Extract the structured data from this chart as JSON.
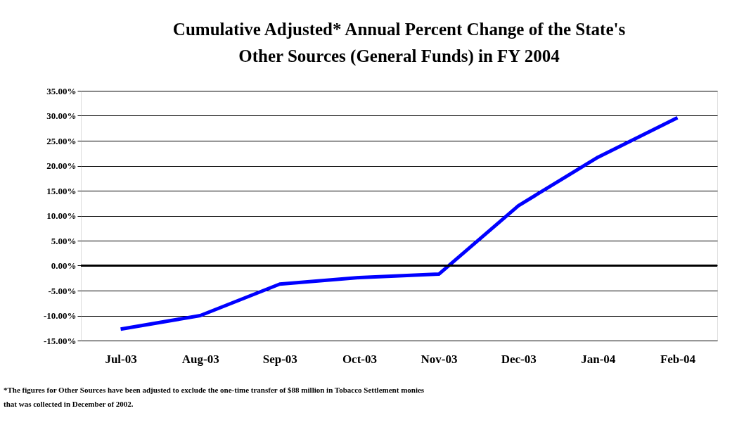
{
  "chart_data": {
    "type": "line",
    "title": "Cumulative Adjusted* Annual Percent Change of the State's Other Sources (General Funds) in FY 2004",
    "categories": [
      "Jul-03",
      "Aug-03",
      "Sep-03",
      "Oct-03",
      "Nov-03",
      "Dec-03",
      "Jan-04",
      "Feb-04"
    ],
    "series": [
      {
        "color": "#0000ff",
        "values": [
          -12.7,
          -10.0,
          -3.7,
          -2.4,
          -1.7,
          12.0,
          21.7,
          29.6
        ]
      }
    ],
    "ylim": [
      -15,
      35
    ],
    "yticks": [
      {
        "value": -15,
        "label": "-15.00%"
      },
      {
        "value": -10,
        "label": "-10.00%"
      },
      {
        "value": -5,
        "label": "-5.00%"
      },
      {
        "value": 0,
        "label": "0.00%"
      },
      {
        "value": 5,
        "label": "5.00%"
      },
      {
        "value": 10,
        "label": "10.00%"
      },
      {
        "value": 15,
        "label": "15.00%"
      },
      {
        "value": 20,
        "label": "20.00%"
      },
      {
        "value": 25,
        "label": "25.00%"
      },
      {
        "value": 30,
        "label": "30.00%"
      },
      {
        "value": 35,
        "label": "35.00%"
      }
    ],
    "ref_lines": [
      {
        "axis": "y",
        "value": 0,
        "color": "#000000"
      }
    ],
    "grid": "y",
    "marker": "none",
    "line_style": "solid",
    "annotations": [
      "*The figures for Other Sources have been adjusted to exclude the one-time transfer of $88 million in Tobacco Settlement monies that was collected in December of 2002."
    ]
  }
}
